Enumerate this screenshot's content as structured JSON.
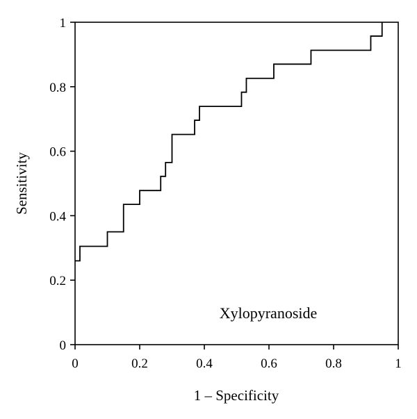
{
  "chart_data": {
    "type": "line",
    "xlabel": "1 – Specificity",
    "ylabel": "Sensitivity",
    "xlim": [
      0,
      1
    ],
    "ylim": [
      0,
      1
    ],
    "xticks": [
      "0",
      "0.2",
      "0.4",
      "0.6",
      "0.8",
      "1"
    ],
    "yticks": [
      "0",
      "0.2",
      "0.4",
      "0.6",
      "0.8",
      "1"
    ],
    "grid": false,
    "legend": "none",
    "annotations": [
      "Xylopyranoside"
    ],
    "series": [
      {
        "step": true,
        "x": [
          0,
          0.015,
          0.1,
          0.15,
          0.2,
          0.265,
          0.28,
          0.3,
          0.37,
          0.385,
          0.515,
          0.53,
          0.615,
          0.73,
          0.915,
          0.95,
          0.95
        ],
        "y": [
          0.26,
          0.305,
          0.35,
          0.435,
          0.478,
          0.522,
          0.565,
          0.652,
          0.696,
          0.739,
          0.783,
          0.826,
          0.87,
          0.913,
          0.957,
          0.957,
          1.0
        ]
      }
    ]
  }
}
